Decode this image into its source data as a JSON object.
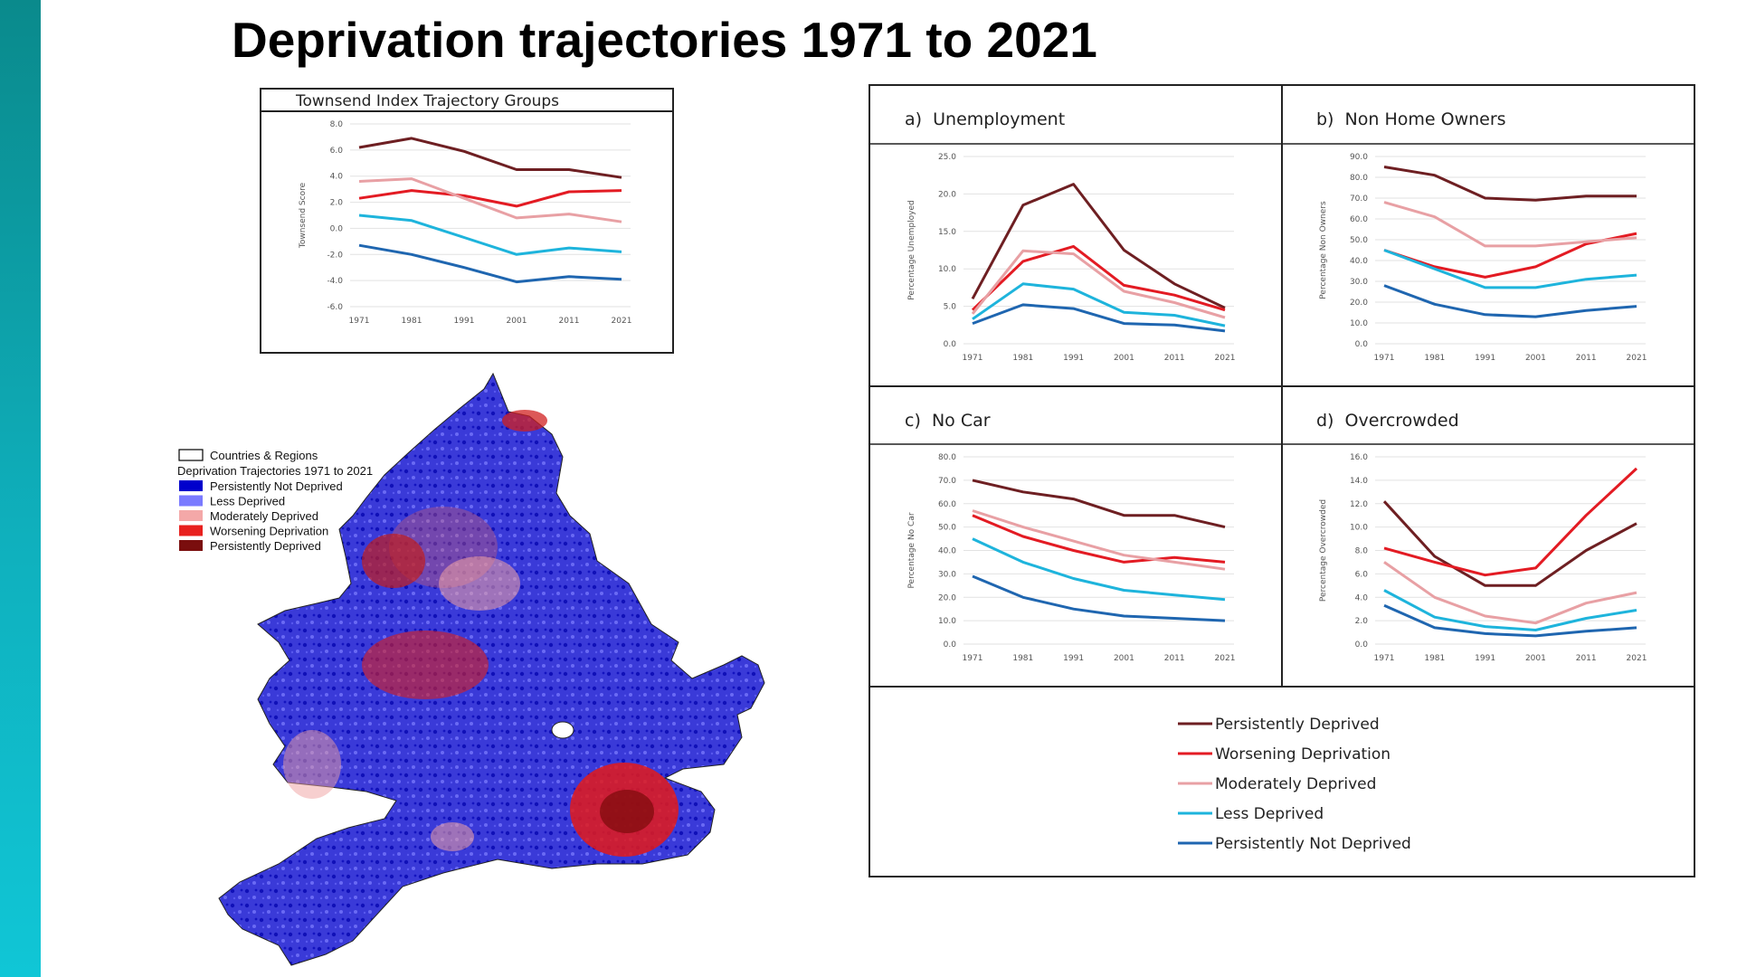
{
  "slide": {
    "title": "Deprivation trajectories 1971 to 2021"
  },
  "colors": {
    "persistently_deprived": "#6e1f22",
    "worsening": "#e31b23",
    "moderately": "#e8a0a4",
    "less": "#1eb4dc",
    "not_deprived": "#1f66b0",
    "map_background": "#3b3bd9"
  },
  "map": {
    "legend_boundary": "Countries & Regions",
    "legend_title": "Deprivation Trajectories 1971 to 2021",
    "legend_items": [
      {
        "label": "Persistently Not Deprived",
        "color": "#0000cc"
      },
      {
        "label": "Less Deprived",
        "color": "#7a7aff"
      },
      {
        "label": "Moderately Deprived",
        "color": "#f4a8a8"
      },
      {
        "label": "Worsening Deprivation",
        "color": "#e8201e"
      },
      {
        "label": "Persistently Deprived",
        "color": "#7a0e0e"
      }
    ]
  },
  "chart_data": [
    {
      "type": "line",
      "title": "Townsend Index Trajectory Groups",
      "xlabel": "",
      "ylabel": "Townsend Score",
      "x": [
        "1971",
        "1981",
        "1991",
        "2001",
        "2011",
        "2021"
      ],
      "ylim": [
        -6,
        8
      ],
      "yticks": [
        "-6.0",
        "-4.0",
        "-2.0",
        "0.0",
        "2.0",
        "4.0",
        "6.0",
        "8.0"
      ],
      "series": [
        {
          "name": "Persistently Deprived",
          "color": "#6e1f22",
          "values": [
            6.2,
            6.9,
            5.9,
            4.5,
            4.5,
            3.9
          ]
        },
        {
          "name": "Worsening Deprivation",
          "color": "#e31b23",
          "values": [
            2.3,
            2.9,
            2.5,
            1.7,
            2.8,
            2.9
          ]
        },
        {
          "name": "Moderately Deprived",
          "color": "#e8a0a4",
          "values": [
            3.6,
            3.8,
            2.3,
            0.8,
            1.1,
            0.5
          ]
        },
        {
          "name": "Less Deprived",
          "color": "#1eb4dc",
          "values": [
            1.0,
            0.6,
            -0.7,
            -2.0,
            -1.5,
            -1.8
          ]
        },
        {
          "name": "Persistently Not Deprived",
          "color": "#1f66b0",
          "values": [
            -1.3,
            -2.0,
            -3.0,
            -4.1,
            -3.7,
            -3.9
          ]
        }
      ]
    },
    {
      "type": "line",
      "title": "a)  Unemployment",
      "ylabel": "Percentage Unemployed",
      "x": [
        "1971",
        "1981",
        "1991",
        "2001",
        "2011",
        "2021"
      ],
      "ylim": [
        0,
        25
      ],
      "yticks": [
        "0.0",
        "5.0",
        "10.0",
        "15.0",
        "20.0",
        "25.0"
      ],
      "series": [
        {
          "name": "Persistently Deprived",
          "color": "#6e1f22",
          "values": [
            6.0,
            18.5,
            21.3,
            12.5,
            8.0,
            4.8
          ]
        },
        {
          "name": "Worsening Deprivation",
          "color": "#e31b23",
          "values": [
            4.5,
            11.0,
            13.0,
            7.8,
            6.5,
            4.5
          ]
        },
        {
          "name": "Moderately Deprived",
          "color": "#e8a0a4",
          "values": [
            4.0,
            12.4,
            12.0,
            7.0,
            5.5,
            3.5
          ]
        },
        {
          "name": "Less Deprived",
          "color": "#1eb4dc",
          "values": [
            3.3,
            8.0,
            7.3,
            4.2,
            3.8,
            2.4
          ]
        },
        {
          "name": "Persistently Not Deprived",
          "color": "#1f66b0",
          "values": [
            2.7,
            5.2,
            4.7,
            2.7,
            2.5,
            1.7
          ]
        }
      ]
    },
    {
      "type": "line",
      "title": "b)  Non Home Owners",
      "ylabel": "Percentage Non Owners",
      "x": [
        "1971",
        "1981",
        "1991",
        "2001",
        "2011",
        "2021"
      ],
      "ylim": [
        0,
        90
      ],
      "yticks": [
        "0.0",
        "10.0",
        "20.0",
        "30.0",
        "40.0",
        "50.0",
        "60.0",
        "70.0",
        "80.0",
        "90.0"
      ],
      "series": [
        {
          "name": "Persistently Deprived",
          "color": "#6e1f22",
          "values": [
            85,
            81,
            70,
            69,
            71,
            71
          ]
        },
        {
          "name": "Worsening Deprivation",
          "color": "#e31b23",
          "values": [
            45,
            37,
            32,
            37,
            48,
            53
          ]
        },
        {
          "name": "Moderately Deprived",
          "color": "#e8a0a4",
          "values": [
            68,
            61,
            47,
            47,
            49,
            51
          ]
        },
        {
          "name": "Less Deprived",
          "color": "#1eb4dc",
          "values": [
            45,
            36,
            27,
            27,
            31,
            33
          ]
        },
        {
          "name": "Persistently Not Deprived",
          "color": "#1f66b0",
          "values": [
            28,
            19,
            14,
            13,
            16,
            18
          ]
        }
      ]
    },
    {
      "type": "line",
      "title": "c)  No Car",
      "ylabel": "Percentage No Car",
      "x": [
        "1971",
        "1981",
        "1991",
        "2001",
        "2011",
        "2021"
      ],
      "ylim": [
        0,
        80
      ],
      "yticks": [
        "0.0",
        "10.0",
        "20.0",
        "30.0",
        "40.0",
        "50.0",
        "60.0",
        "70.0",
        "80.0"
      ],
      "series": [
        {
          "name": "Persistently Deprived",
          "color": "#6e1f22",
          "values": [
            70,
            65,
            62,
            55,
            55,
            50
          ]
        },
        {
          "name": "Worsening Deprivation",
          "color": "#e31b23",
          "values": [
            55,
            46,
            40,
            35,
            37,
            35
          ]
        },
        {
          "name": "Moderately Deprived",
          "color": "#e8a0a4",
          "values": [
            57,
            50,
            44,
            38,
            35,
            32
          ]
        },
        {
          "name": "Less Deprived",
          "color": "#1eb4dc",
          "values": [
            45,
            35,
            28,
            23,
            21,
            19
          ]
        },
        {
          "name": "Persistently Not Deprived",
          "color": "#1f66b0",
          "values": [
            29,
            20,
            15,
            12,
            11,
            10
          ]
        }
      ]
    },
    {
      "type": "line",
      "title": "d)  Overcrowded",
      "ylabel": "Percentage Overcrowded",
      "x": [
        "1971",
        "1981",
        "1991",
        "2001",
        "2011",
        "2021"
      ],
      "ylim": [
        0,
        16
      ],
      "yticks": [
        "0.0",
        "2.0",
        "4.0",
        "6.0",
        "8.0",
        "10.0",
        "12.0",
        "14.0",
        "16.0"
      ],
      "series": [
        {
          "name": "Persistently Deprived",
          "color": "#6e1f22",
          "values": [
            12.2,
            7.5,
            5.0,
            5.0,
            8.0,
            10.3
          ]
        },
        {
          "name": "Worsening Deprivation",
          "color": "#e31b23",
          "values": [
            8.2,
            7.0,
            5.9,
            6.5,
            11.0,
            15.0
          ]
        },
        {
          "name": "Moderately Deprived",
          "color": "#e8a0a4",
          "values": [
            7.0,
            4.0,
            2.4,
            1.8,
            3.5,
            4.4
          ]
        },
        {
          "name": "Less Deprived",
          "color": "#1eb4dc",
          "values": [
            4.6,
            2.3,
            1.5,
            1.2,
            2.2,
            2.9
          ]
        },
        {
          "name": "Persistently Not Deprived",
          "color": "#1f66b0",
          "values": [
            3.3,
            1.4,
            0.9,
            0.7,
            1.1,
            1.4
          ]
        }
      ]
    }
  ],
  "panel_legend": [
    {
      "label": "Persistently Deprived",
      "color": "#6e1f22"
    },
    {
      "label": "Worsening Deprivation",
      "color": "#e31b23"
    },
    {
      "label": "Moderately Deprived",
      "color": "#e8a0a4"
    },
    {
      "label": "Less Deprived",
      "color": "#1eb4dc"
    },
    {
      "label": "Persistently Not Deprived",
      "color": "#1f66b0"
    }
  ]
}
